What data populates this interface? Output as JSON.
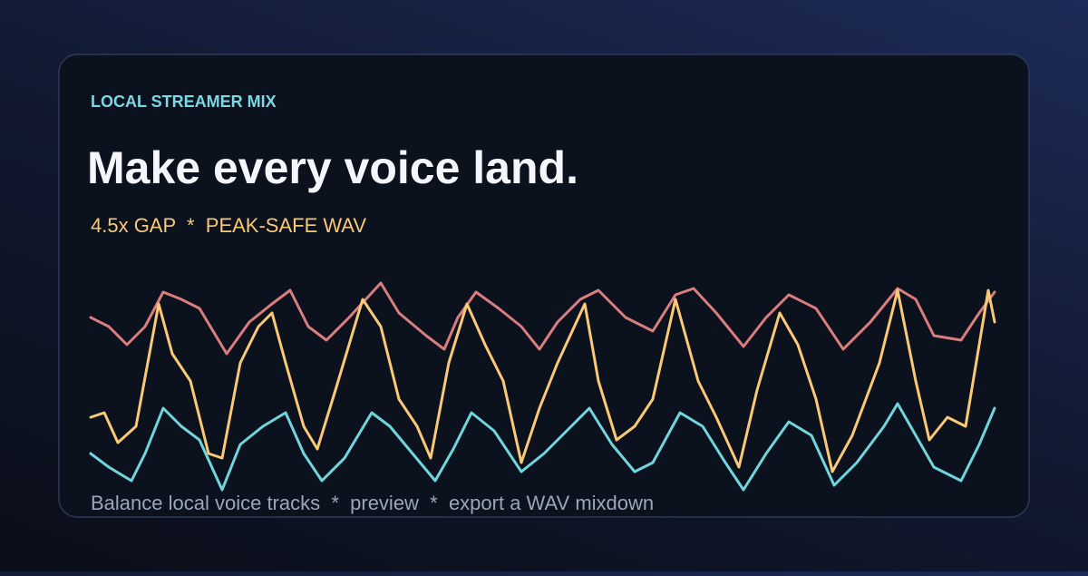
{
  "card": {
    "eyebrow": "LOCAL STREAMER MIX",
    "title": "Make every voice land.",
    "tagline": "4.5x GAP  *  PEAK-SAFE WAV",
    "footer": "Balance local voice tracks  *  preview  *  export a WAV mixdown"
  }
}
